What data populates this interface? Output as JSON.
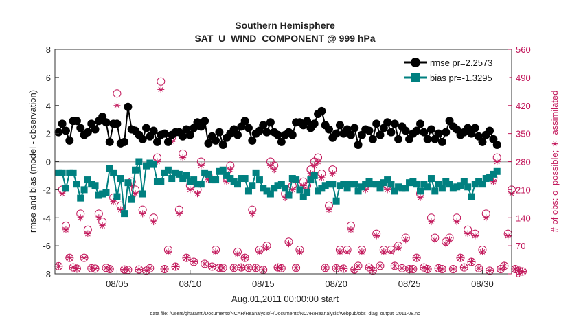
{
  "chart_data": {
    "type": "line",
    "title": "Southern Hemisphere",
    "subtitle": "SAT_U_WIND_COMPONENT @ 999 hPa",
    "xlabel": "Aug.01,2011 00:00:00 start",
    "ylabel": "rmse and bias (model - observation)",
    "y2label": "# of obs: o=possible; ∗=assimilated",
    "footnote": "data file: /Users/gharamti/Documents/NCAR/Reanalysis/~/Documents/NCAR/Reanalysis/webpub/obs_diag_output_2011-08.nc",
    "xlim": [
      0.75,
      32.0
    ],
    "ylim": [
      -8,
      8
    ],
    "y2lim": [
      0,
      560
    ],
    "xticks": [
      {
        "value": 5,
        "label": "08/05"
      },
      {
        "value": 10,
        "label": "08/10"
      },
      {
        "value": 15,
        "label": "08/15"
      },
      {
        "value": 20,
        "label": "08/20"
      },
      {
        "value": 25,
        "label": "08/25"
      },
      {
        "value": 30,
        "label": "08/30"
      }
    ],
    "yticks": [
      "-8",
      "-6",
      "-4",
      "-2",
      "0",
      "2",
      "4",
      "6",
      "8"
    ],
    "y2ticks": [
      "0",
      "70",
      "140",
      "210",
      "280",
      "350",
      "420",
      "490",
      "560"
    ],
    "grid": false,
    "legend_position": "top-right",
    "x_step_days": 0.25,
    "colors": {
      "rmse": "#000000",
      "bias": "#008080",
      "obs": "#c2185b",
      "zero": "#b0b0b0"
    },
    "series": [
      {
        "name": "rmse pr=2.2573",
        "values": [
          2.1,
          2.7,
          2.2,
          1.5,
          2.9,
          2.9,
          2.4,
          1.9,
          2.1,
          2.7,
          2.3,
          2.9,
          3.2,
          2.8,
          1.4,
          2.7,
          2.7,
          1.3,
          1.4,
          3.9,
          2.3,
          2.2,
          1.9,
          1.6,
          2.4,
          1.8,
          2.2,
          1.4,
          1.9,
          2.0,
          1.4,
          1.9,
          2.1,
          2.1,
          1.8,
          2.3,
          1.9,
          2.4,
          2.8,
          2.5,
          2.9,
          1.3,
          1.8,
          1.5,
          2.1,
          1.2,
          1.7,
          2.0,
          2.3,
          1.9,
          2.5,
          2.9,
          2.4,
          1.5,
          2.0,
          2.2,
          2.6,
          2.1,
          2.8,
          2.1,
          1.9,
          1.4,
          1.9,
          2.1,
          1.9,
          2.8,
          2.8,
          2.6,
          2.9,
          2.4,
          2.7,
          3.4,
          3.6,
          2.6,
          2.3,
          1.7,
          2.0,
          2.6,
          2.0,
          2.3,
          1.9,
          2.4,
          1.2,
          1.9,
          2.3,
          2.2,
          1.6,
          2.7,
          1.9,
          2.4,
          2.8,
          2.1,
          2.7,
          1.6,
          2.5,
          2.2,
          1.6,
          2.0,
          2.2,
          2.7,
          2.1,
          1.6,
          2.3,
          1.6,
          2.0,
          1.4,
          2.1,
          2.9,
          2.5,
          2.3,
          1.9,
          2.1,
          2.4,
          2.0,
          2.4,
          1.8,
          1.4,
          1.9,
          2.2,
          1.6,
          1.2
        ]
      },
      {
        "name": "bias pr=-1.3295",
        "values": [
          -0.8,
          -0.8,
          -1.9,
          -0.8,
          -0.8,
          -1.6,
          -2.6,
          -2.0,
          -1.3,
          -1.6,
          -1.7,
          -2.4,
          -2.3,
          -2.2,
          -0.5,
          -0.8,
          -2.5,
          -1.2,
          -3.7,
          -1.5,
          -2.7,
          -0.6,
          0.0,
          -2.3,
          -0.3,
          -0.1,
          -0.2,
          -1.4,
          -1.4,
          -0.8,
          -0.6,
          -1.2,
          -0.8,
          -0.9,
          -1.2,
          -1.0,
          -1.4,
          -1.3,
          -1.6,
          -1.6,
          -0.8,
          -0.9,
          -1.3,
          -1.3,
          -0.7,
          -0.6,
          -1.0,
          -1.2,
          -1.4,
          -1.6,
          -1.2,
          -1.2,
          -2.1,
          -1.7,
          -0.8,
          -1.3,
          -1.9,
          -2.1,
          -2.3,
          -1.9,
          -1.7,
          -1.6,
          -1.9,
          -2.4,
          -1.2,
          -1.3,
          -2.0,
          -2.5,
          -2.2,
          -1.3,
          -1.0,
          -2.1,
          -1.9,
          -1.7,
          -1.6,
          -1.6,
          -2.8,
          -1.7,
          -1.6,
          -1.9,
          -1.6,
          -1.6,
          -2.1,
          -1.8,
          -1.6,
          -1.4,
          -1.6,
          -1.6,
          -1.9,
          -1.5,
          -1.3,
          -1.6,
          -2.1,
          -1.8,
          -1.9,
          -1.9,
          -1.5,
          -1.4,
          -1.6,
          -2.1,
          -1.6,
          -1.8,
          -1.2,
          -2.1,
          -1.6,
          -1.9,
          -1.4,
          -1.6,
          -1.9,
          -1.8,
          -1.7,
          -1.4,
          -1.8,
          -2.5,
          -1.6,
          -1.4,
          -1.6,
          -1.2,
          -1.1,
          -0.9,
          -0.7
        ]
      },
      {
        "name": "possible",
        "values": [
          19,
          210,
          120,
          40,
          16,
          13,
          150,
          40,
          110,
          14,
          13,
          150,
          130,
          15,
          12,
          190,
          450,
          170,
          11,
          10,
          230,
          210,
          11,
          160,
          8,
          14,
          140,
          290,
          480,
          12,
          60,
          340,
          18,
          160,
          300,
          40,
          220,
          30,
          210,
          280,
          25,
          245,
          18,
          60,
          15,
          15,
          240,
          270,
          15,
          55,
          16,
          40,
          15,
          160,
          15,
          60,
          10,
          70,
          280,
          270,
          16,
          14,
          200,
          80,
          220,
          15,
          60,
          230,
          220,
          260,
          280,
          290,
          250,
          15,
          170,
          260,
          14,
          60,
          13,
          60,
          120,
          11,
          20,
          60,
          220,
          16,
          8,
          100,
          20,
          60,
          220,
          60,
          20,
          70,
          14,
          90,
          12,
          12,
          40,
          200,
          16,
          12,
          140,
          90,
          14,
          12,
          80,
          90,
          12,
          140,
          40,
          16,
          110,
          30,
          100,
          14,
          60,
          150,
          8,
          240,
          290,
          12,
          20,
          100,
          210,
          12,
          8,
          6
        ]
      },
      {
        "name": "assimilated",
        "values": [
          19,
          200,
          110,
          40,
          16,
          13,
          140,
          40,
          100,
          14,
          13,
          140,
          120,
          15,
          12,
          180,
          420,
          160,
          11,
          10,
          220,
          200,
          11,
          150,
          8,
          14,
          130,
          280,
          460,
          12,
          55,
          330,
          18,
          150,
          290,
          40,
          210,
          30,
          200,
          270,
          25,
          235,
          18,
          55,
          15,
          15,
          230,
          260,
          15,
          50,
          16,
          40,
          15,
          150,
          15,
          55,
          10,
          65,
          270,
          260,
          16,
          14,
          190,
          75,
          210,
          15,
          55,
          220,
          210,
          250,
          270,
          280,
          240,
          15,
          160,
          250,
          14,
          55,
          13,
          55,
          110,
          11,
          20,
          55,
          210,
          16,
          8,
          95,
          20,
          55,
          210,
          55,
          20,
          65,
          14,
          85,
          12,
          12,
          40,
          190,
          16,
          12,
          130,
          85,
          14,
          12,
          75,
          85,
          12,
          130,
          40,
          16,
          100,
          30,
          95,
          14,
          55,
          140,
          8,
          230,
          280,
          12,
          20,
          95,
          200,
          12,
          8,
          6
        ]
      }
    ]
  }
}
